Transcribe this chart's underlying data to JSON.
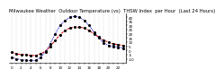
{
  "title": "Milwaukee Weather  Outdoor Temperature (vs)  THSW Index  per Hour  (Last 24 Hours)",
  "hours": [
    0,
    1,
    2,
    3,
    4,
    5,
    6,
    7,
    8,
    9,
    10,
    11,
    12,
    13,
    14,
    15,
    16,
    17,
    18,
    19,
    20,
    21,
    22,
    23
  ],
  "temp": [
    -2,
    -4,
    -5,
    -5,
    -6,
    -6,
    -4,
    -1,
    5,
    12,
    19,
    24,
    27,
    28,
    28,
    27,
    24,
    20,
    16,
    12,
    10,
    8,
    7,
    6
  ],
  "thsw": [
    -8,
    -10,
    -11,
    -12,
    -12,
    -12,
    -8,
    -2,
    8,
    20,
    30,
    36,
    40,
    41,
    40,
    36,
    30,
    22,
    15,
    9,
    6,
    5,
    4,
    3
  ],
  "temp_color": "#cc0000",
  "thsw_color": "#0000cc",
  "point_color": "#000000",
  "ylim_min": -15,
  "ylim_max": 45,
  "yticks": [
    -10,
    -5,
    0,
    5,
    10,
    15,
    20,
    25,
    30,
    35,
    40
  ],
  "background_color": "#ffffff",
  "grid_color": "#888888",
  "title_fontsize": 3.8,
  "tick_fontsize": 3.0,
  "line_width": 0.7
}
